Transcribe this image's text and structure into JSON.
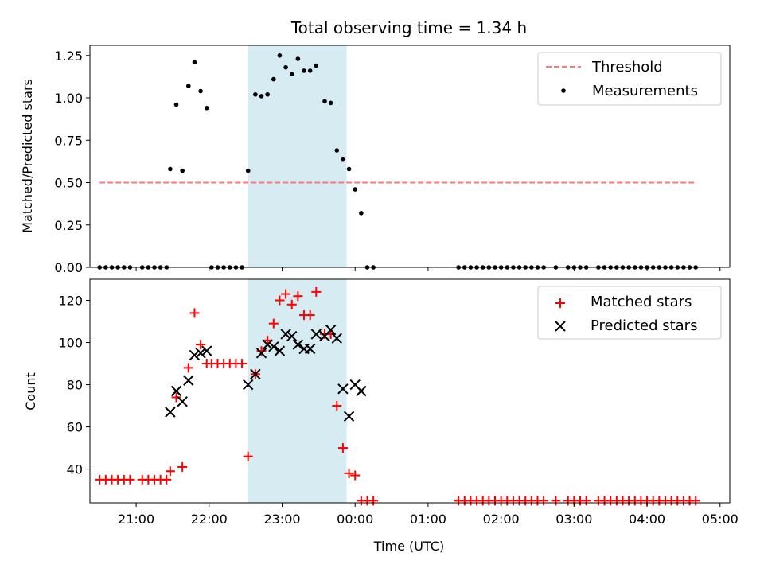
{
  "chart_data": [
    {
      "type": "scatter",
      "title": "Total observing time = 1.34 h",
      "ylabel": "Matched/Predicted stars",
      "xlabel": "",
      "ylim": [
        0,
        1.31
      ],
      "yticks": [
        "0.00",
        "0.25",
        "0.50",
        "0.75",
        "1.00",
        "1.25"
      ],
      "ytick_values": [
        0,
        0.25,
        0.5,
        0.75,
        1.0,
        1.25
      ],
      "highlight_span": {
        "start": "22:32",
        "end": "23:53",
        "color": "#add8e6"
      },
      "threshold": {
        "name": "Threshold",
        "value": 0.5,
        "x_start": "20:30",
        "x_end": "04:40",
        "color": "#ff7777"
      },
      "legend": {
        "position": "top-right",
        "entries": [
          "Threshold",
          "Measurements"
        ]
      },
      "series": [
        {
          "name": "Measurements",
          "color": "#000000",
          "marker": "dot",
          "points": [
            [
              "20:30",
              0
            ],
            [
              "20:35",
              0
            ],
            [
              "20:40",
              0
            ],
            [
              "20:45",
              0
            ],
            [
              "20:50",
              0
            ],
            [
              "20:55",
              0
            ],
            [
              "21:05",
              0
            ],
            [
              "21:10",
              0
            ],
            [
              "21:15",
              0
            ],
            [
              "21:20",
              0
            ],
            [
              "21:25",
              0
            ],
            [
              "21:28",
              0.58
            ],
            [
              "21:33",
              0.96
            ],
            [
              "21:38",
              0.57
            ],
            [
              "21:43",
              1.07
            ],
            [
              "21:48",
              1.21
            ],
            [
              "21:53",
              1.04
            ],
            [
              "21:58",
              0.94
            ],
            [
              "22:02",
              0
            ],
            [
              "22:07",
              0
            ],
            [
              "22:12",
              0
            ],
            [
              "22:17",
              0
            ],
            [
              "22:22",
              0
            ],
            [
              "22:27",
              0
            ],
            [
              "22:32",
              0.57
            ],
            [
              "22:38",
              1.02
            ],
            [
              "22:43",
              1.01
            ],
            [
              "22:48",
              1.02
            ],
            [
              "22:53",
              1.11
            ],
            [
              "22:58",
              1.25
            ],
            [
              "23:03",
              1.18
            ],
            [
              "23:08",
              1.14
            ],
            [
              "23:13",
              1.23
            ],
            [
              "23:18",
              1.16
            ],
            [
              "23:23",
              1.16
            ],
            [
              "23:28",
              1.19
            ],
            [
              "23:35",
              0.98
            ],
            [
              "23:40",
              0.97
            ],
            [
              "23:45",
              0.69
            ],
            [
              "23:50",
              0.64
            ],
            [
              "23:55",
              0.58
            ],
            [
              "00:00",
              0.46
            ],
            [
              "00:05",
              0.32
            ],
            [
              "00:10",
              0
            ],
            [
              "00:15",
              0
            ],
            [
              "01:25",
              0
            ],
            [
              "01:30",
              0
            ],
            [
              "01:35",
              0
            ],
            [
              "01:40",
              0
            ],
            [
              "01:45",
              0
            ],
            [
              "01:50",
              0
            ],
            [
              "01:55",
              0
            ],
            [
              "02:00",
              0
            ],
            [
              "02:05",
              0
            ],
            [
              "02:10",
              0
            ],
            [
              "02:15",
              0
            ],
            [
              "02:20",
              0
            ],
            [
              "02:25",
              0
            ],
            [
              "02:30",
              0
            ],
            [
              "02:35",
              0
            ],
            [
              "02:45",
              0
            ],
            [
              "02:55",
              0
            ],
            [
              "03:00",
              0
            ],
            [
              "03:05",
              0
            ],
            [
              "03:10",
              0
            ],
            [
              "03:20",
              0
            ],
            [
              "03:25",
              0
            ],
            [
              "03:30",
              0
            ],
            [
              "03:35",
              0
            ],
            [
              "03:40",
              0
            ],
            [
              "03:45",
              0
            ],
            [
              "03:50",
              0
            ],
            [
              "03:55",
              0
            ],
            [
              "04:00",
              0
            ],
            [
              "04:05",
              0
            ],
            [
              "04:10",
              0
            ],
            [
              "04:15",
              0
            ],
            [
              "04:20",
              0
            ],
            [
              "04:25",
              0
            ],
            [
              "04:30",
              0
            ],
            [
              "04:35",
              0
            ],
            [
              "04:40",
              0
            ]
          ]
        }
      ]
    },
    {
      "type": "scatter",
      "title": "",
      "xlabel": "Time (UTC)",
      "ylabel": "Count",
      "ylim": [
        24,
        130
      ],
      "yticks": [
        "40",
        "60",
        "80",
        "100",
        "120"
      ],
      "ytick_values": [
        40,
        60,
        80,
        100,
        120
      ],
      "xlim": [
        "20:22",
        "05:08"
      ],
      "xticks": [
        "21:00",
        "22:00",
        "23:00",
        "00:00",
        "01:00",
        "02:00",
        "03:00",
        "04:00",
        "05:00"
      ],
      "highlight_span": {
        "start": "22:32",
        "end": "23:53",
        "color": "#add8e6"
      },
      "legend": {
        "position": "top-right",
        "entries": [
          "Matched stars",
          "Predicted stars"
        ]
      },
      "series": [
        {
          "name": "Matched stars",
          "color": "#ff0000",
          "marker": "plus",
          "points": [
            [
              "20:30",
              35
            ],
            [
              "20:35",
              35
            ],
            [
              "20:40",
              35
            ],
            [
              "20:45",
              35
            ],
            [
              "20:50",
              35
            ],
            [
              "20:55",
              35
            ],
            [
              "21:05",
              35
            ],
            [
              "21:10",
              35
            ],
            [
              "21:15",
              35
            ],
            [
              "21:20",
              35
            ],
            [
              "21:25",
              35
            ],
            [
              "21:28",
              39
            ],
            [
              "21:33",
              74
            ],
            [
              "21:38",
              41
            ],
            [
              "21:43",
              88
            ],
            [
              "21:48",
              114
            ],
            [
              "21:53",
              99
            ],
            [
              "21:58",
              90
            ],
            [
              "22:02",
              90
            ],
            [
              "22:07",
              90
            ],
            [
              "22:12",
              90
            ],
            [
              "22:17",
              90
            ],
            [
              "22:22",
              90
            ],
            [
              "22:27",
              90
            ],
            [
              "22:32",
              46
            ],
            [
              "22:38",
              85
            ],
            [
              "22:43",
              96
            ],
            [
              "22:48",
              101
            ],
            [
              "22:53",
              109
            ],
            [
              "22:58",
              120
            ],
            [
              "23:03",
              123
            ],
            [
              "23:08",
              118
            ],
            [
              "23:13",
              122
            ],
            [
              "23:18",
              113
            ],
            [
              "23:23",
              113
            ],
            [
              "23:28",
              124
            ],
            [
              "23:35",
              104
            ],
            [
              "23:40",
              104
            ],
            [
              "23:45",
              70
            ],
            [
              "23:50",
              50
            ],
            [
              "23:55",
              38
            ],
            [
              "00:00",
              37
            ],
            [
              "00:05",
              25
            ],
            [
              "00:10",
              25
            ],
            [
              "00:15",
              25
            ],
            [
              "01:25",
              25
            ],
            [
              "01:30",
              25
            ],
            [
              "01:35",
              25
            ],
            [
              "01:40",
              25
            ],
            [
              "01:45",
              25
            ],
            [
              "01:50",
              25
            ],
            [
              "01:55",
              25
            ],
            [
              "02:00",
              25
            ],
            [
              "02:05",
              25
            ],
            [
              "02:10",
              25
            ],
            [
              "02:15",
              25
            ],
            [
              "02:20",
              25
            ],
            [
              "02:25",
              25
            ],
            [
              "02:30",
              25
            ],
            [
              "02:35",
              25
            ],
            [
              "02:45",
              25
            ],
            [
              "02:55",
              25
            ],
            [
              "03:00",
              25
            ],
            [
              "03:05",
              25
            ],
            [
              "03:10",
              25
            ],
            [
              "03:20",
              25
            ],
            [
              "03:25",
              25
            ],
            [
              "03:30",
              25
            ],
            [
              "03:35",
              25
            ],
            [
              "03:40",
              25
            ],
            [
              "03:45",
              25
            ],
            [
              "03:50",
              25
            ],
            [
              "03:55",
              25
            ],
            [
              "04:00",
              25
            ],
            [
              "04:05",
              25
            ],
            [
              "04:10",
              25
            ],
            [
              "04:15",
              25
            ],
            [
              "04:20",
              25
            ],
            [
              "04:25",
              25
            ],
            [
              "04:30",
              25
            ],
            [
              "04:35",
              25
            ],
            [
              "04:40",
              25
            ]
          ]
        },
        {
          "name": "Predicted stars",
          "color": "#000000",
          "marker": "x",
          "points": [
            [
              "21:28",
              67
            ],
            [
              "21:33",
              77
            ],
            [
              "21:38",
              72
            ],
            [
              "21:43",
              82
            ],
            [
              "21:48",
              94
            ],
            [
              "21:53",
              95
            ],
            [
              "21:58",
              96
            ],
            [
              "22:32",
              80
            ],
            [
              "22:38",
              85
            ],
            [
              "22:43",
              95
            ],
            [
              "22:48",
              99
            ],
            [
              "22:53",
              98
            ],
            [
              "22:58",
              96
            ],
            [
              "23:03",
              104
            ],
            [
              "23:08",
              103
            ],
            [
              "23:13",
              99
            ],
            [
              "23:18",
              97
            ],
            [
              "23:23",
              97
            ],
            [
              "23:28",
              104
            ],
            [
              "23:35",
              103
            ],
            [
              "23:40",
              106
            ],
            [
              "23:45",
              102
            ],
            [
              "23:50",
              78
            ],
            [
              "23:55",
              65
            ],
            [
              "00:00",
              80
            ],
            [
              "00:05",
              77
            ]
          ]
        }
      ]
    }
  ]
}
